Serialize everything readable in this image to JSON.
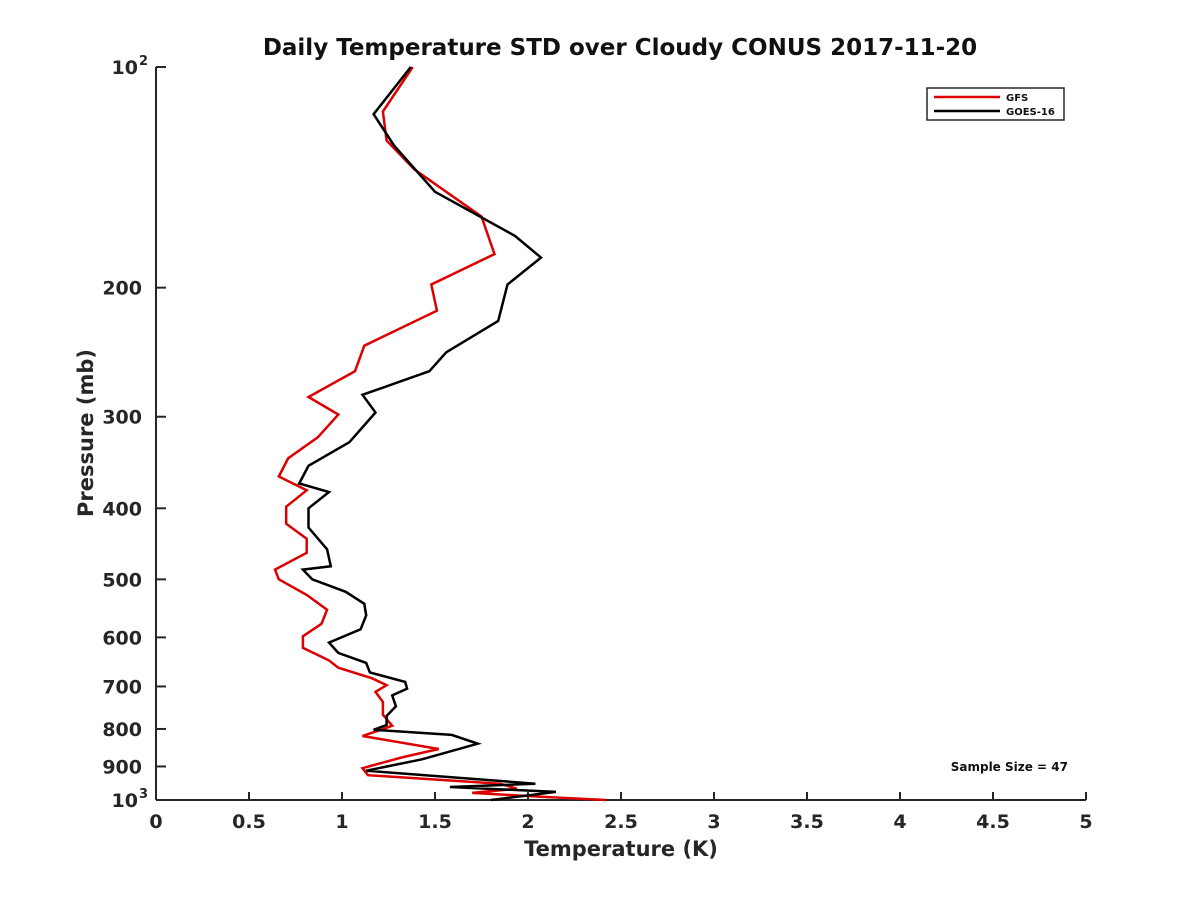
{
  "chart_data": {
    "type": "line",
    "title": "Daily Temperature STD over Cloudy CONUS 2017-11-20",
    "xlabel": "Temperature (K)",
    "ylabel": "Pressure (mb)",
    "xlim": [
      0,
      5
    ],
    "ylim": [
      100,
      1000
    ],
    "y_scale": "log",
    "y_reversed": true,
    "x_ticks": [
      {
        "value": 0,
        "label": "0"
      },
      {
        "value": 0.5,
        "label": "0.5"
      },
      {
        "value": 1,
        "label": "1"
      },
      {
        "value": 1.5,
        "label": "1.5"
      },
      {
        "value": 2,
        "label": "2"
      },
      {
        "value": 2.5,
        "label": "2.5"
      },
      {
        "value": 3,
        "label": "3"
      },
      {
        "value": 3.5,
        "label": "3.5"
      },
      {
        "value": 4,
        "label": "4"
      },
      {
        "value": 4.5,
        "label": "4.5"
      },
      {
        "value": 5,
        "label": "5"
      }
    ],
    "y_ticks": [
      {
        "value": 100,
        "label": "10",
        "exponent": "2"
      },
      {
        "value": 200,
        "label": "200"
      },
      {
        "value": 300,
        "label": "300"
      },
      {
        "value": 400,
        "label": "400"
      },
      {
        "value": 500,
        "label": "500"
      },
      {
        "value": 600,
        "label": "600"
      },
      {
        "value": 700,
        "label": "700"
      },
      {
        "value": 800,
        "label": "800"
      },
      {
        "value": 900,
        "label": "900"
      },
      {
        "value": 1000,
        "label": "10",
        "exponent": "3"
      }
    ],
    "grid": false,
    "legend_position": "top-right",
    "annotation": "Sample Size = 47",
    "series": [
      {
        "name": "GFS",
        "color": "#dd0000",
        "points": [
          [
            1.38,
            100
          ],
          [
            1.22,
            115
          ],
          [
            1.24,
            126
          ],
          [
            1.39,
            138
          ],
          [
            1.75,
            160
          ],
          [
            1.82,
            180
          ],
          [
            1.48,
            198
          ],
          [
            1.51,
            215
          ],
          [
            1.12,
            240
          ],
          [
            1.07,
            260
          ],
          [
            0.82,
            282
          ],
          [
            0.98,
            298
          ],
          [
            0.87,
            320
          ],
          [
            0.71,
            342
          ],
          [
            0.66,
            362
          ],
          [
            0.81,
            378
          ],
          [
            0.7,
            398
          ],
          [
            0.7,
            420
          ],
          [
            0.81,
            440
          ],
          [
            0.81,
            460
          ],
          [
            0.64,
            485
          ],
          [
            0.66,
            500
          ],
          [
            0.81,
            525
          ],
          [
            0.92,
            550
          ],
          [
            0.89,
            575
          ],
          [
            0.79,
            598
          ],
          [
            0.79,
            620
          ],
          [
            0.93,
            645
          ],
          [
            0.98,
            660
          ],
          [
            1.16,
            682
          ],
          [
            1.24,
            697
          ],
          [
            1.18,
            712
          ],
          [
            1.22,
            735
          ],
          [
            1.22,
            765
          ],
          [
            1.27,
            792
          ],
          [
            1.11,
            818
          ],
          [
            1.52,
            852
          ],
          [
            1.32,
            875
          ],
          [
            1.11,
            905
          ],
          [
            1.14,
            925
          ],
          [
            1.85,
            950
          ],
          [
            1.94,
            965
          ],
          [
            1.7,
            978
          ],
          [
            2.07,
            990
          ],
          [
            2.42,
            1000
          ]
        ]
      },
      {
        "name": "GOES-16",
        "color": "#000000",
        "points": [
          [
            1.37,
            100
          ],
          [
            1.17,
            116
          ],
          [
            1.28,
            128
          ],
          [
            1.5,
            148
          ],
          [
            1.93,
            170
          ],
          [
            2.07,
            182
          ],
          [
            1.89,
            198
          ],
          [
            1.84,
            222
          ],
          [
            1.56,
            245
          ],
          [
            1.47,
            260
          ],
          [
            1.11,
            280
          ],
          [
            1.18,
            296
          ],
          [
            1.04,
            325
          ],
          [
            0.82,
            350
          ],
          [
            0.77,
            370
          ],
          [
            0.93,
            380
          ],
          [
            0.82,
            400
          ],
          [
            0.82,
            425
          ],
          [
            0.92,
            455
          ],
          [
            0.94,
            480
          ],
          [
            0.79,
            485
          ],
          [
            0.84,
            500
          ],
          [
            1.02,
            520
          ],
          [
            1.12,
            540
          ],
          [
            1.13,
            560
          ],
          [
            1.1,
            585
          ],
          [
            0.93,
            610
          ],
          [
            0.98,
            630
          ],
          [
            1.13,
            650
          ],
          [
            1.15,
            670
          ],
          [
            1.34,
            690
          ],
          [
            1.35,
            705
          ],
          [
            1.27,
            720
          ],
          [
            1.29,
            745
          ],
          [
            1.24,
            768
          ],
          [
            1.24,
            790
          ],
          [
            1.17,
            802
          ],
          [
            1.59,
            815
          ],
          [
            1.73,
            838
          ],
          [
            1.43,
            880
          ],
          [
            1.13,
            912
          ],
          [
            2.04,
            950
          ],
          [
            1.58,
            960
          ],
          [
            2.15,
            975
          ],
          [
            1.8,
            1000
          ]
        ]
      }
    ]
  }
}
